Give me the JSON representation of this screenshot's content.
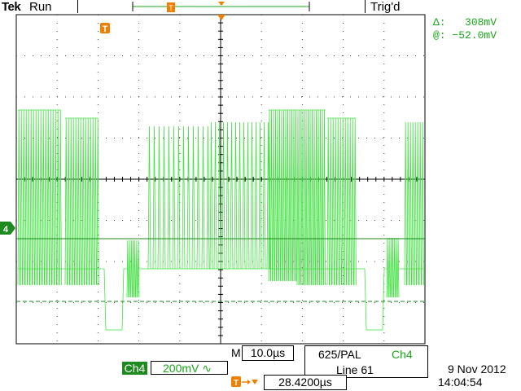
{
  "header": {
    "brand": "Tek",
    "run_state": "Run",
    "trigger_state": "Trig'd"
  },
  "cursor": {
    "delta_symbol": "Δ:",
    "delta_value": "308mV",
    "at_symbol": "@:",
    "at_value": "−52.0mV"
  },
  "trigger_marker": "T",
  "channel_marker": "4",
  "timebase": {
    "prefix": "M",
    "value": "10.0µs"
  },
  "video_trigger": {
    "standard": "625/PAL",
    "channel": "Ch4",
    "line": "Line 61"
  },
  "channel_setting": {
    "channel": "Ch4",
    "scale": "200mV",
    "coupling_symbol": "∿"
  },
  "trigger_position": {
    "value": "28.4200µs"
  },
  "datetime": {
    "date": "9 Nov 2012",
    "time": "14:04:54"
  },
  "colors": {
    "trace": "#44e044",
    "cursor_text": "#1aa51a",
    "channel_badge": "#1f8a1f",
    "trigger_marker": "#f07f00",
    "grid": "#000000"
  }
}
